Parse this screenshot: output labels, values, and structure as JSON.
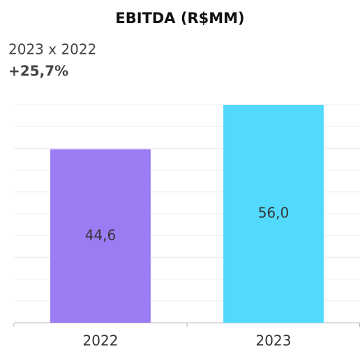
{
  "chart_data": {
    "type": "bar",
    "title": "EBITDA (R$MM)",
    "subtitle": "2023 x 2022",
    "annotation": "+25,7%",
    "categories": [
      "2022",
      "2023"
    ],
    "values": [
      44.6,
      56.0
    ],
    "value_labels": [
      "44,6",
      "56,0"
    ],
    "colors": [
      "#9b7cf3",
      "#52d9fd"
    ],
    "ylim": [
      0,
      56
    ],
    "yticks": [
      0,
      5.6,
      11.2,
      16.8,
      22.4,
      28,
      33.6,
      39.2,
      44.8,
      50.4,
      56
    ],
    "grid": true
  }
}
